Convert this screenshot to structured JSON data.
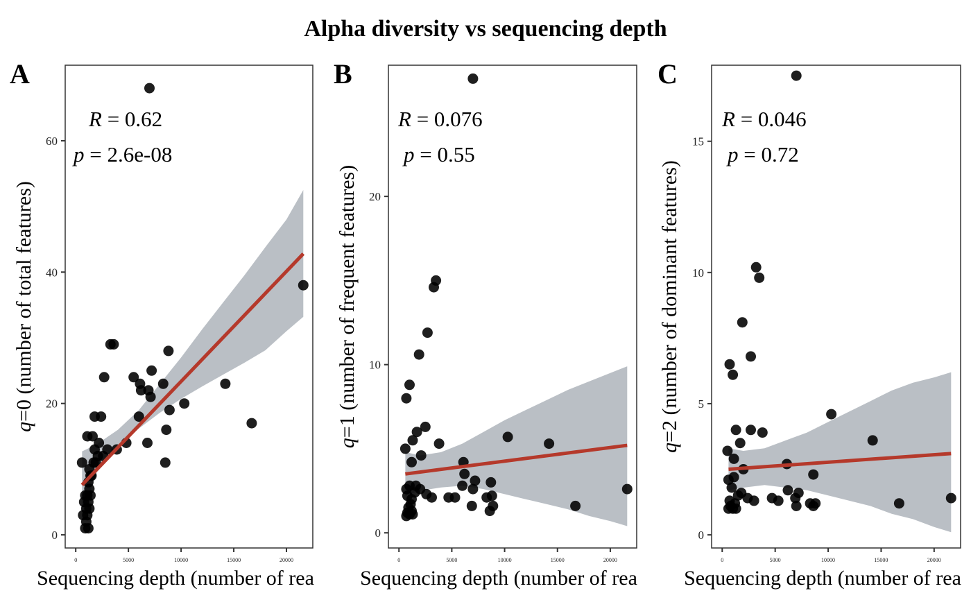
{
  "chart_data": {
    "title": "Alpha diversity vs sequencing depth",
    "type": "scatter",
    "colors": {
      "points": "#000000",
      "fit_line": "#b5392b",
      "ci_band": "#a9afb7",
      "frame": "#333333"
    },
    "panels": [
      {
        "tag": "A",
        "type": "scatter",
        "xlabel": "Sequencing depth (number of rea",
        "ylabel_italic": "q",
        "ylabel_rest": "=0 (number of total features)",
        "xlim": [
          -1000,
          22500
        ],
        "ylim": [
          -2,
          71.5
        ],
        "xticks": [
          0,
          5000,
          10000,
          15000,
          20000
        ],
        "xtick_labels": [
          "0",
          "5000",
          "10000",
          "15000",
          "20000"
        ],
        "yticks": [
          0,
          20,
          40,
          60
        ],
        "ytick_labels": [
          "0",
          "20",
          "40",
          "60"
        ],
        "grid": false,
        "annotation": {
          "R_label": "R",
          "R_value": " = 0.62",
          "p_label": "p",
          "p_value": " = 2.6e-08"
        },
        "fit": {
          "x": [
            600,
            21600
          ],
          "y": [
            7.6,
            42.8
          ]
        },
        "ci": {
          "x": [
            600,
            2000,
            4000,
            6000,
            8000,
            10000,
            12000,
            14000,
            16000,
            18000,
            20000,
            21600
          ],
          "lower": [
            2.5,
            9.6,
            13.3,
            16.2,
            18.6,
            20.7,
            22.6,
            24.4,
            26.2,
            28.1,
            31.0,
            33.2
          ],
          "upper": [
            12.7,
            13.8,
            16.0,
            19.0,
            23.0,
            27.0,
            31.3,
            35.4,
            39.5,
            43.8,
            48.0,
            52.5
          ]
        },
        "points": [
          [
            7000,
            68
          ],
          [
            21600,
            38
          ],
          [
            14200,
            23
          ],
          [
            16700,
            17
          ],
          [
            10300,
            20
          ],
          [
            8900,
            19
          ],
          [
            8800,
            28
          ],
          [
            8300,
            23
          ],
          [
            8600,
            16
          ],
          [
            8500,
            11
          ],
          [
            7200,
            25
          ],
          [
            6900,
            22
          ],
          [
            7100,
            21
          ],
          [
            6100,
            23
          ],
          [
            6200,
            22
          ],
          [
            5500,
            24
          ],
          [
            6000,
            18
          ],
          [
            6800,
            14
          ],
          [
            4800,
            14
          ],
          [
            3300,
            29
          ],
          [
            3600,
            29
          ],
          [
            2700,
            24
          ],
          [
            2400,
            18
          ],
          [
            1800,
            18
          ],
          [
            1600,
            15
          ],
          [
            1100,
            15
          ],
          [
            3000,
            13
          ],
          [
            3900,
            13
          ],
          [
            2600,
            12
          ],
          [
            2100,
            12
          ],
          [
            1900,
            11
          ],
          [
            1700,
            11
          ],
          [
            1300,
            10
          ],
          [
            1400,
            9
          ],
          [
            1200,
            8
          ],
          [
            1300,
            7
          ],
          [
            1100,
            6
          ],
          [
            900,
            6
          ],
          [
            1200,
            5
          ],
          [
            800,
            5
          ],
          [
            1300,
            4
          ],
          [
            700,
            3
          ],
          [
            1100,
            3
          ],
          [
            1000,
            2
          ],
          [
            900,
            1
          ],
          [
            1200,
            1
          ],
          [
            600,
            11
          ],
          [
            1500,
            9
          ],
          [
            2200,
            14
          ],
          [
            1800,
            13
          ],
          [
            1400,
            6
          ],
          [
            1000,
            4
          ]
        ]
      },
      {
        "tag": "B",
        "type": "scatter",
        "xlabel": "Sequencing depth (number of rea",
        "ylabel_italic": "q",
        "ylabel_rest": "=1 (number of frequent features)",
        "xlim": [
          -1000,
          22500
        ],
        "ylim": [
          -0.9,
          27.8
        ],
        "xticks": [
          0,
          5000,
          10000,
          15000,
          20000
        ],
        "xtick_labels": [
          "0",
          "5000",
          "10000",
          "15000",
          "20000"
        ],
        "yticks": [
          0,
          10,
          20
        ],
        "ytick_labels": [
          "0",
          "10",
          "20"
        ],
        "grid": false,
        "annotation": {
          "R_label": "R",
          "R_value": " = 0.076",
          "p_label": "p",
          "p_value": " = 0.55"
        },
        "fit": {
          "x": [
            600,
            21600
          ],
          "y": [
            3.5,
            5.2
          ]
        },
        "ci": {
          "x": [
            600,
            2000,
            4000,
            6000,
            8000,
            10000,
            12000,
            14000,
            16000,
            18000,
            20000,
            21600
          ],
          "lower": [
            2.2,
            2.5,
            2.7,
            2.8,
            2.6,
            2.3,
            2.0,
            1.7,
            1.4,
            1.0,
            0.7,
            0.4
          ],
          "upper": [
            4.8,
            4.6,
            4.8,
            5.3,
            6.0,
            6.7,
            7.3,
            7.9,
            8.5,
            9.0,
            9.5,
            9.9
          ]
        },
        "points": [
          [
            7000,
            27
          ],
          [
            3500,
            15
          ],
          [
            3300,
            14.6
          ],
          [
            2700,
            11.9
          ],
          [
            1900,
            10.6
          ],
          [
            1000,
            8.8
          ],
          [
            700,
            8
          ],
          [
            600,
            5
          ],
          [
            1700,
            6
          ],
          [
            2500,
            6.3
          ],
          [
            1300,
            5.5
          ],
          [
            3800,
            5.3
          ],
          [
            2100,
            4.6
          ],
          [
            1200,
            4.2
          ],
          [
            10300,
            5.7
          ],
          [
            14200,
            5.3
          ],
          [
            6100,
            4.2
          ],
          [
            6200,
            3.5
          ],
          [
            7200,
            3.1
          ],
          [
            8700,
            3.0
          ],
          [
            6000,
            2.8
          ],
          [
            7000,
            2.6
          ],
          [
            8300,
            2.1
          ],
          [
            8800,
            2.2
          ],
          [
            8900,
            1.6
          ],
          [
            8600,
            1.3
          ],
          [
            6900,
            1.6
          ],
          [
            5300,
            2.1
          ],
          [
            4700,
            2.1
          ],
          [
            3100,
            2.1
          ],
          [
            2600,
            2.3
          ],
          [
            2000,
            2.6
          ],
          [
            1600,
            2.8
          ],
          [
            1000,
            2.8
          ],
          [
            700,
            2.6
          ],
          [
            16700,
            1.6
          ],
          [
            21600,
            2.6
          ],
          [
            800,
            1.2
          ],
          [
            1000,
            1.1
          ],
          [
            1200,
            1.3
          ],
          [
            900,
            1.5
          ],
          [
            1100,
            1.7
          ],
          [
            1300,
            1.1
          ],
          [
            700,
            1.0
          ],
          [
            1200,
            2.0
          ],
          [
            1500,
            2.4
          ],
          [
            800,
            2.2
          ]
        ]
      },
      {
        "tag": "C",
        "type": "scatter",
        "xlabel": "Sequencing depth (number of rea",
        "ylabel_italic": "q",
        "ylabel_rest": "=2 (number of dominant features)",
        "xlim": [
          -1000,
          22500
        ],
        "ylim": [
          -0.5,
          17.9
        ],
        "xticks": [
          0,
          5000,
          10000,
          15000,
          20000
        ],
        "xtick_labels": [
          "0",
          "5000",
          "10000",
          "15000",
          "20000"
        ],
        "yticks": [
          0,
          5,
          10,
          15
        ],
        "ytick_labels": [
          "0",
          "5",
          "10",
          "15"
        ],
        "grid": false,
        "annotation": {
          "R_label": "R",
          "R_value": " = 0.046",
          "p_label": "p",
          "p_value": " = 0.72"
        },
        "fit": {
          "x": [
            600,
            21600
          ],
          "y": [
            2.5,
            3.1
          ]
        },
        "ci": {
          "x": [
            600,
            2000,
            4000,
            6000,
            8000,
            10000,
            12000,
            14000,
            16000,
            18000,
            20000,
            21600
          ],
          "lower": [
            1.7,
            1.8,
            1.9,
            1.8,
            1.7,
            1.5,
            1.3,
            1.1,
            0.8,
            0.6,
            0.3,
            0.1
          ],
          "upper": [
            3.3,
            3.2,
            3.3,
            3.6,
            3.9,
            4.3,
            4.7,
            5.1,
            5.5,
            5.8,
            6.0,
            6.2
          ]
        },
        "points": [
          [
            7000,
            17.5
          ],
          [
            3200,
            10.2
          ],
          [
            3500,
            9.8
          ],
          [
            1900,
            8.1
          ],
          [
            2700,
            6.8
          ],
          [
            700,
            6.5
          ],
          [
            1000,
            6.1
          ],
          [
            1300,
            4.0
          ],
          [
            2700,
            4.0
          ],
          [
            3800,
            3.9
          ],
          [
            1700,
            3.5
          ],
          [
            10300,
            4.6
          ],
          [
            14200,
            3.6
          ],
          [
            6100,
            2.7
          ],
          [
            8600,
            2.3
          ],
          [
            500,
            3.2
          ],
          [
            1100,
            2.9
          ],
          [
            2000,
            2.5
          ],
          [
            6200,
            1.7
          ],
          [
            7200,
            1.6
          ],
          [
            6900,
            1.4
          ],
          [
            5300,
            1.3
          ],
          [
            4700,
            1.4
          ],
          [
            3000,
            1.3
          ],
          [
            2400,
            1.4
          ],
          [
            1800,
            1.6
          ],
          [
            8800,
            1.2
          ],
          [
            8600,
            1.1
          ],
          [
            8300,
            1.2
          ],
          [
            7000,
            1.1
          ],
          [
            16700,
            1.2
          ],
          [
            21600,
            1.4
          ],
          [
            800,
            1.1
          ],
          [
            1000,
            1.0
          ],
          [
            1200,
            1.2
          ],
          [
            700,
            1.3
          ],
          [
            900,
            1.8
          ],
          [
            1100,
            2.2
          ],
          [
            600,
            2.1
          ],
          [
            1500,
            1.5
          ],
          [
            1300,
            1.0
          ],
          [
            600,
            1.0
          ]
        ]
      }
    ]
  }
}
